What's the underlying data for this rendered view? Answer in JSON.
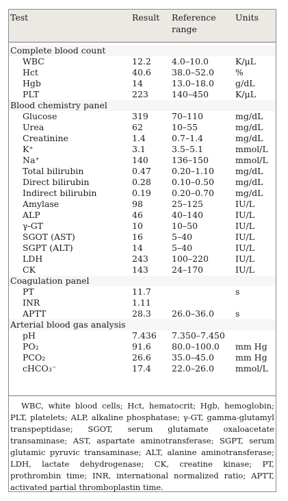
{
  "header": {
    "test": "Test",
    "result": "Result",
    "reference": "Reference range",
    "units": "Units"
  },
  "rows": [
    {
      "type": "section",
      "test": "Complete blood count"
    },
    {
      "test": "WBC",
      "result": "12.2",
      "ref": "4.0–10.0",
      "unit": "K/μL"
    },
    {
      "test": "Hct",
      "result": "40.6",
      "ref": "38.0–52.0",
      "unit": "%"
    },
    {
      "test": "Hgb",
      "result": "14",
      "ref": "13.0–18.0",
      "unit": "g/dL"
    },
    {
      "test": "PLT",
      "result": "223",
      "ref": "140–450",
      "unit": "K/μL"
    },
    {
      "type": "section",
      "test": "Blood chemistry panel"
    },
    {
      "test": "Glucose",
      "result": "319",
      "ref": "70–110",
      "unit": "mg/dL"
    },
    {
      "test": "Urea",
      "result": "62",
      "ref": "10–55",
      "unit": "mg/dL"
    },
    {
      "test": "Creatinine",
      "result": "1.4",
      "ref": "0.7–1.4",
      "unit": "mg/dL"
    },
    {
      "test": "K⁺",
      "result": "3.1",
      "ref": "3.5–5.1",
      "unit": "mmol/L"
    },
    {
      "test": "Na⁺",
      "result": "140",
      "ref": "136–150",
      "unit": "mmol/L"
    },
    {
      "test": "Total bilirubin",
      "result": "0.47",
      "ref": "0.20–1.10",
      "unit": "mg/dL"
    },
    {
      "test": "Direct bilirubin",
      "result": "0.28",
      "ref": "0.10–0.50",
      "unit": "mg/dL"
    },
    {
      "test": "Indirect bilirubin",
      "result": "0.19",
      "ref": "0.20–0.70",
      "unit": "mg/dL"
    },
    {
      "test": "Amylase",
      "result": "98",
      "ref": "25–125",
      "unit": "IU/L"
    },
    {
      "test": "ALP",
      "result": "46",
      "ref": "40–140",
      "unit": "IU/L"
    },
    {
      "test": "γ-GT",
      "result": "10",
      "ref": "10–50",
      "unit": "IU/L"
    },
    {
      "test": "SGOT (AST)",
      "result": "16",
      "ref": "5–40",
      "unit": "IU/L"
    },
    {
      "test": "SGPT (ALT)",
      "result": "14",
      "ref": "5–40",
      "unit": "IU/L"
    },
    {
      "test": "LDH",
      "result": "243",
      "ref": "100–220",
      "unit": "IU/L"
    },
    {
      "test": "CK",
      "result": "143",
      "ref": "24–170",
      "unit": "IU/L"
    },
    {
      "type": "section",
      "test": "Coagulation panel"
    },
    {
      "test": "PT",
      "result": "11.7",
      "ref": "",
      "unit": "s"
    },
    {
      "test": "INR",
      "result": "1.11",
      "ref": "",
      "unit": ""
    },
    {
      "test": "APTT",
      "result": "28.3",
      "ref": "26.0–36.0",
      "unit": "s"
    },
    {
      "type": "section",
      "test": "Arterial blood gas analysis"
    },
    {
      "test": "pH",
      "result": "7.436",
      "ref": "7.350–7.450",
      "unit": ""
    },
    {
      "test": "PO₂",
      "result": "91.6",
      "ref": "80.0–100.0",
      "unit": "mm Hg"
    },
    {
      "test": "PCO₂",
      "result": "26.6",
      "ref": "35.0–45.0",
      "unit": "mm Hg"
    },
    {
      "test": "cHCO₃⁻",
      "result": "17.4",
      "ref": "22.0–26.0",
      "unit": "mmol/L"
    }
  ],
  "footnote": "WBC, white blood cells; Hct, hematocrit; Hgb, hemoglobin; PLT, platelets; ALP, alkaline phosphatase; γ-GT, gamma-glutamyl transpeptidase; SGOT, serum glutamate oxaloacetate transaminase; AST, aspartate aminotransferase; SGPT, serum glutamic pyruvic transaminase; ALT, alanine aminotransferase; LDH, lactate dehydrogenase; CK, creatine kinase; PT, prothrombin time; INR, international normalized ratio; APTT, activated partial thromboplastin time."
}
